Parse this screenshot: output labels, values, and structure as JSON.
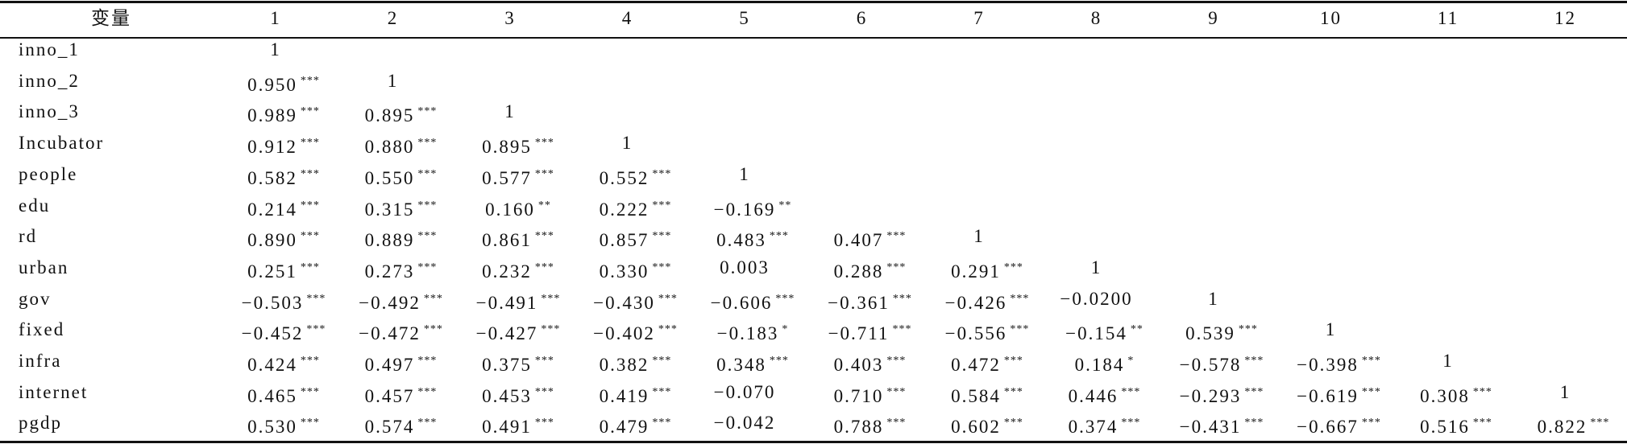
{
  "table": {
    "header": [
      "变量",
      "1",
      "2",
      "3",
      "4",
      "5",
      "6",
      "7",
      "8",
      "9",
      "10",
      "11",
      "12"
    ],
    "rows": [
      {
        "label": "inno_1",
        "cells": [
          {
            "value": "1"
          }
        ]
      },
      {
        "label": "inno_2",
        "cells": [
          {
            "value": "0.950",
            "stars": "***"
          },
          {
            "value": "1"
          }
        ]
      },
      {
        "label": "inno_3",
        "cells": [
          {
            "value": "0.989",
            "stars": "***"
          },
          {
            "value": "0.895",
            "stars": "***"
          },
          {
            "value": "1"
          }
        ]
      },
      {
        "label": "Incubator",
        "cells": [
          {
            "value": "0.912",
            "stars": "***"
          },
          {
            "value": "0.880",
            "stars": "***"
          },
          {
            "value": "0.895",
            "stars": "***"
          },
          {
            "value": "1"
          }
        ]
      },
      {
        "label": "people",
        "cells": [
          {
            "value": "0.582",
            "stars": "***"
          },
          {
            "value": "0.550",
            "stars": "***"
          },
          {
            "value": "0.577",
            "stars": "***"
          },
          {
            "value": "0.552",
            "stars": "***"
          },
          {
            "value": "1"
          }
        ]
      },
      {
        "label": "edu",
        "cells": [
          {
            "value": "0.214",
            "stars": "***"
          },
          {
            "value": "0.315",
            "stars": "***"
          },
          {
            "value": "0.160",
            "stars": "**"
          },
          {
            "value": "0.222",
            "stars": "***"
          },
          {
            "value": "−0.169",
            "stars": "**"
          }
        ]
      },
      {
        "label": "rd",
        "cells": [
          {
            "value": "0.890",
            "stars": "***"
          },
          {
            "value": "0.889",
            "stars": "***"
          },
          {
            "value": "0.861",
            "stars": "***"
          },
          {
            "value": "0.857",
            "stars": "***"
          },
          {
            "value": "0.483",
            "stars": "***"
          },
          {
            "value": "0.407",
            "stars": "***"
          },
          {
            "value": "1"
          }
        ]
      },
      {
        "label": "urban",
        "cells": [
          {
            "value": "0.251",
            "stars": "***"
          },
          {
            "value": "0.273",
            "stars": "***"
          },
          {
            "value": "0.232",
            "stars": "***"
          },
          {
            "value": "0.330",
            "stars": "***"
          },
          {
            "value": "0.003"
          },
          {
            "value": "0.288",
            "stars": "***"
          },
          {
            "value": "0.291",
            "stars": "***"
          },
          {
            "value": "1"
          }
        ]
      },
      {
        "label": "gov",
        "cells": [
          {
            "value": "−0.503",
            "stars": "***"
          },
          {
            "value": "−0.492",
            "stars": "***"
          },
          {
            "value": "−0.491",
            "stars": "***"
          },
          {
            "value": "−0.430",
            "stars": "***"
          },
          {
            "value": "−0.606",
            "stars": "***"
          },
          {
            "value": "−0.361",
            "stars": "***"
          },
          {
            "value": "−0.426",
            "stars": "***"
          },
          {
            "value": "−0.0200"
          },
          {
            "value": "1"
          }
        ]
      },
      {
        "label": "fixed",
        "cells": [
          {
            "value": "−0.452",
            "stars": "***"
          },
          {
            "value": "−0.472",
            "stars": "***"
          },
          {
            "value": "−0.427",
            "stars": "***"
          },
          {
            "value": "−0.402",
            "stars": "***"
          },
          {
            "value": "−0.183",
            "stars": "*"
          },
          {
            "value": "−0.711",
            "stars": "***"
          },
          {
            "value": "−0.556",
            "stars": "***"
          },
          {
            "value": "−0.154",
            "stars": "**"
          },
          {
            "value": "0.539",
            "stars": "***"
          },
          {
            "value": "1"
          }
        ]
      },
      {
        "label": "infra",
        "cells": [
          {
            "value": "0.424",
            "stars": "***"
          },
          {
            "value": "0.497",
            "stars": "***"
          },
          {
            "value": "0.375",
            "stars": "***"
          },
          {
            "value": "0.382",
            "stars": "***"
          },
          {
            "value": "0.348",
            "stars": "***"
          },
          {
            "value": "0.403",
            "stars": "***"
          },
          {
            "value": "0.472",
            "stars": "***"
          },
          {
            "value": "0.184",
            "stars": "*"
          },
          {
            "value": "−0.578",
            "stars": "***"
          },
          {
            "value": "−0.398",
            "stars": "***"
          },
          {
            "value": "1"
          }
        ]
      },
      {
        "label": "internet",
        "cells": [
          {
            "value": "0.465",
            "stars": "***"
          },
          {
            "value": "0.457",
            "stars": "***"
          },
          {
            "value": "0.453",
            "stars": "***"
          },
          {
            "value": "0.419",
            "stars": "***"
          },
          {
            "value": "−0.070"
          },
          {
            "value": "0.710",
            "stars": "***"
          },
          {
            "value": "0.584",
            "stars": "***"
          },
          {
            "value": "0.446",
            "stars": "***"
          },
          {
            "value": "−0.293",
            "stars": "***"
          },
          {
            "value": "−0.619",
            "stars": "***"
          },
          {
            "value": "0.308",
            "stars": "***"
          },
          {
            "value": "1"
          }
        ]
      },
      {
        "label": "pgdp",
        "cells": [
          {
            "value": "0.530",
            "stars": "***"
          },
          {
            "value": "0.574",
            "stars": "***"
          },
          {
            "value": "0.491",
            "stars": "***"
          },
          {
            "value": "0.479",
            "stars": "***"
          },
          {
            "value": "−0.042"
          },
          {
            "value": "0.788",
            "stars": "***"
          },
          {
            "value": "0.602",
            "stars": "***"
          },
          {
            "value": "0.374",
            "stars": "***"
          },
          {
            "value": "−0.431",
            "stars": "***"
          },
          {
            "value": "−0.667",
            "stars": "***"
          },
          {
            "value": "0.516",
            "stars": "***"
          },
          {
            "value": "0.822",
            "stars": "***"
          }
        ]
      }
    ]
  }
}
